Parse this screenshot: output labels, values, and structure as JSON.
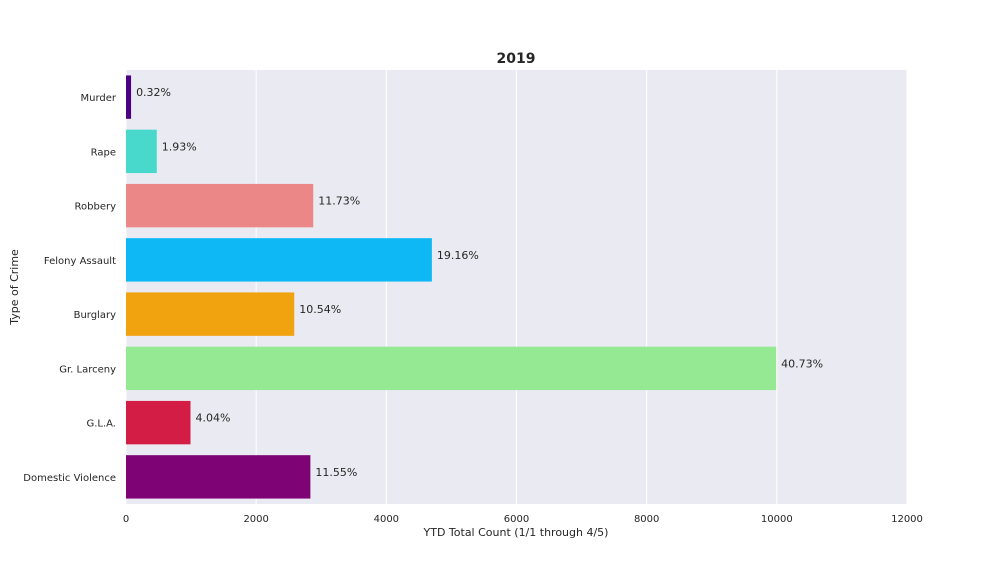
{
  "chart_data": {
    "type": "bar",
    "orientation": "horizontal",
    "title": "2019",
    "xlabel": "YTD Total Count (1/1 through 4/5)",
    "ylabel": "Type of Crime",
    "xlim": [
      0,
      12000
    ],
    "xticks": [
      0,
      2000,
      4000,
      6000,
      8000,
      10000,
      12000
    ],
    "grid": true,
    "categories": [
      "Murder",
      "Rape",
      "Robbery",
      "Felony Assault",
      "Burglary",
      "Gr. Larceny",
      "G.L.A.",
      "Domestic Violence"
    ],
    "values": [
      78,
      473,
      2877,
      4700,
      2585,
      9990,
      991,
      2833
    ],
    "data_labels": [
      "0.32%",
      "1.93%",
      "11.73%",
      "19.16%",
      "10.54%",
      "40.73%",
      "4.04%",
      "11.55%"
    ],
    "colors": [
      "#4b0082",
      "#48d8cc",
      "#eb8787",
      "#0eb8f4",
      "#f1a20f",
      "#96e993",
      "#d41d44",
      "#7e0475"
    ],
    "background": "#eaeaf2"
  }
}
